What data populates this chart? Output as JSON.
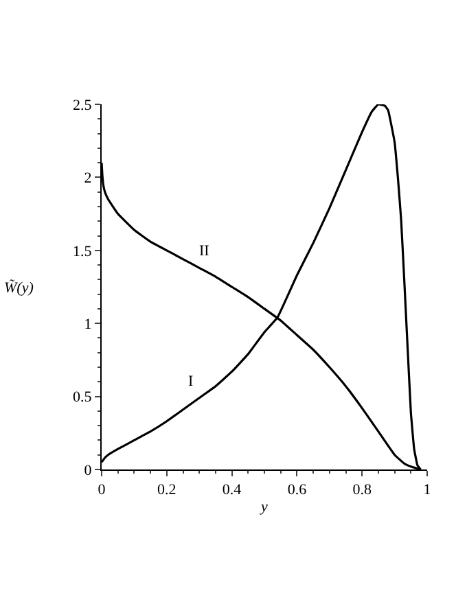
{
  "chart_data": {
    "type": "line",
    "xlabel": "y",
    "ylabel": "W̃(y)",
    "series": [
      {
        "name": "I",
        "color": "#000000",
        "x": [
          0,
          0.01,
          0.02,
          0.05,
          0.1,
          0.15,
          0.2,
          0.25,
          0.3,
          0.35,
          0.4,
          0.45,
          0.5,
          0.54,
          0.6,
          0.65,
          0.7,
          0.75,
          0.8,
          0.83,
          0.85,
          0.87,
          0.88,
          0.9,
          0.91,
          0.92,
          0.93,
          0.94,
          0.95,
          0.96,
          0.97,
          0.98
        ],
        "values": [
          0.05,
          0.08,
          0.1,
          0.14,
          0.2,
          0.26,
          0.33,
          0.41,
          0.49,
          0.57,
          0.67,
          0.79,
          0.94,
          1.04,
          1.33,
          1.55,
          1.79,
          2.05,
          2.31,
          2.45,
          2.5,
          2.49,
          2.46,
          2.24,
          2.0,
          1.71,
          1.28,
          0.83,
          0.39,
          0.14,
          0.03,
          0
        ]
      },
      {
        "name": "II",
        "color": "#000000",
        "x": [
          0,
          0.002,
          0.005,
          0.01,
          0.02,
          0.05,
          0.1,
          0.15,
          0.2,
          0.25,
          0.3,
          0.35,
          0.4,
          0.45,
          0.5,
          0.55,
          0.6,
          0.65,
          0.7,
          0.75,
          0.8,
          0.85,
          0.9,
          0.93,
          0.95,
          0.98
        ],
        "values": [
          2.1,
          2.02,
          1.95,
          1.9,
          1.85,
          1.75,
          1.64,
          1.56,
          1.5,
          1.44,
          1.38,
          1.32,
          1.25,
          1.18,
          1.1,
          1.02,
          0.92,
          0.82,
          0.7,
          0.57,
          0.42,
          0.26,
          0.1,
          0.04,
          0.02,
          0
        ]
      }
    ],
    "xlim": [
      0,
      1
    ],
    "xticks": [
      0,
      0.2,
      0.4,
      0.6,
      0.8,
      1
    ],
    "ylim": [
      0,
      2.5
    ],
    "yticks": [
      0,
      0.5,
      1,
      1.5,
      2,
      2.5
    ],
    "grid": false,
    "legend": false,
    "marker": "none",
    "line_style": "solid"
  }
}
